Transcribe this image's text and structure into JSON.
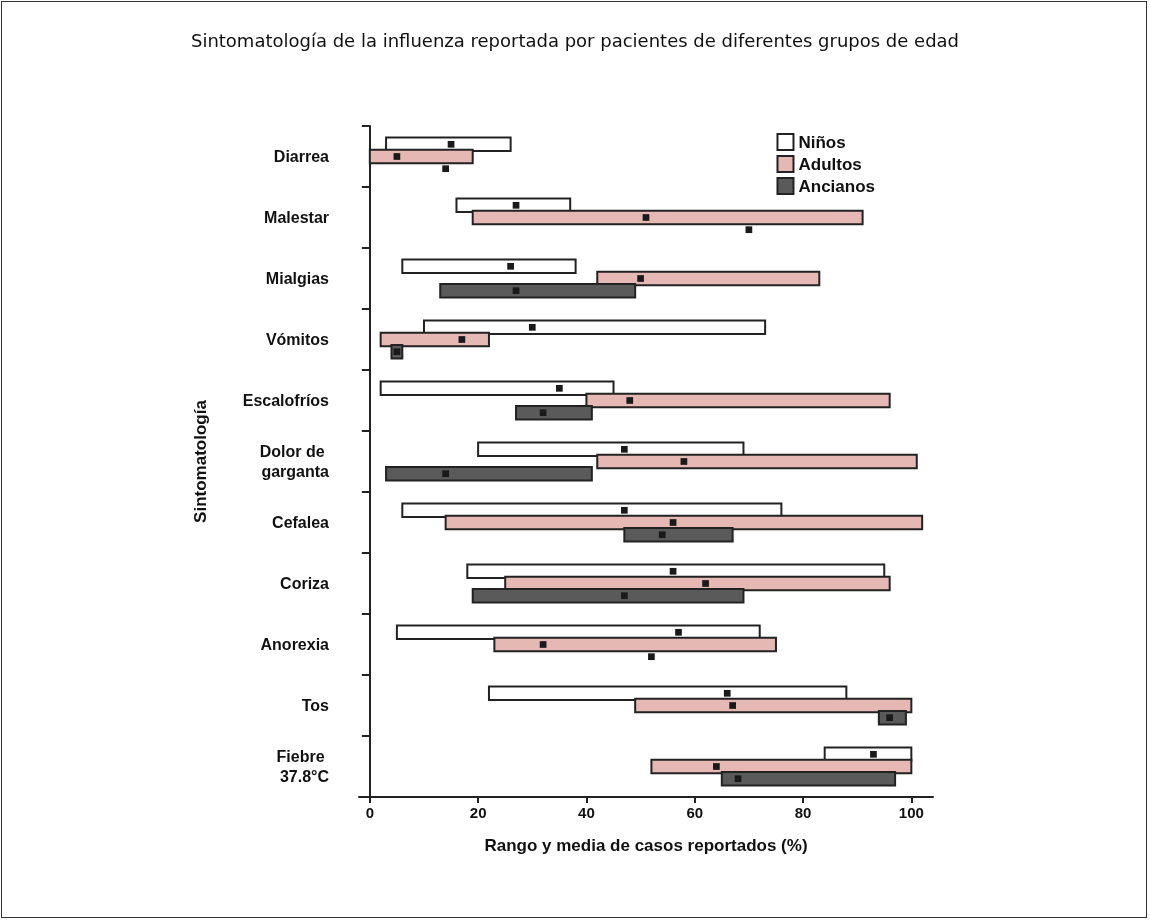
{
  "chart_data": {
    "type": "bar",
    "orientation": "horizontal",
    "title": "Sintomatología de la influenza reportada por pacientes de diferentes grupos de edad",
    "xlabel": "Rango y media de casos reportados (%)",
    "ylabel": "Sintomatología",
    "categories": [
      "Diarrea",
      "Malestar",
      "Mialgias",
      "Vómitos",
      "Escalofríos",
      "Dolor de garganta",
      "Cefalea",
      "Coriza",
      "Anorexia",
      "Tos",
      "Fiebre 37.8°C"
    ],
    "series": [
      {
        "name": "Niños",
        "color": "#ffffff",
        "base": [
          3,
          16,
          6,
          10,
          2,
          20,
          6,
          18,
          5,
          22,
          84
        ],
        "values": [
          23,
          21,
          32,
          63,
          43,
          49,
          70,
          77,
          67,
          66,
          16
        ]
      },
      {
        "type": "scatter",
        "color": "#1a1a1a",
        "values": [
          15,
          27,
          26,
          30,
          35,
          47,
          47,
          56,
          57,
          66,
          93
        ]
      },
      {
        "name": "Adultos",
        "color": "#e6b8b3",
        "base": [
          0,
          19,
          42,
          2,
          40,
          42,
          14,
          25,
          23,
          49,
          52
        ],
        "values": [
          19,
          72,
          41,
          20,
          56,
          59,
          88,
          71,
          52,
          51,
          48
        ]
      },
      {
        "type": "scatter",
        "color": "#1a1a1a",
        "values": [
          5,
          51,
          50,
          17,
          48,
          58,
          56,
          62,
          32,
          67,
          64
        ]
      },
      {
        "name": "Ancianos",
        "color": "#5a5a5a",
        "base": [
          null,
          null,
          13,
          4,
          27,
          3,
          47,
          19,
          null,
          94,
          65
        ],
        "values": [
          null,
          null,
          36,
          2,
          14,
          38,
          20,
          50,
          null,
          5,
          32
        ]
      },
      {
        "type": "scatter",
        "color": "#1a1a1a",
        "values": [
          14,
          70,
          27,
          5,
          32,
          14,
          54,
          47,
          52,
          96,
          68
        ]
      }
    ],
    "marker": "square",
    "xlim": [
      -2,
      104
    ],
    "xticks": [
      0,
      20,
      40,
      60,
      80,
      100
    ],
    "grid": false,
    "legend": "top right"
  }
}
